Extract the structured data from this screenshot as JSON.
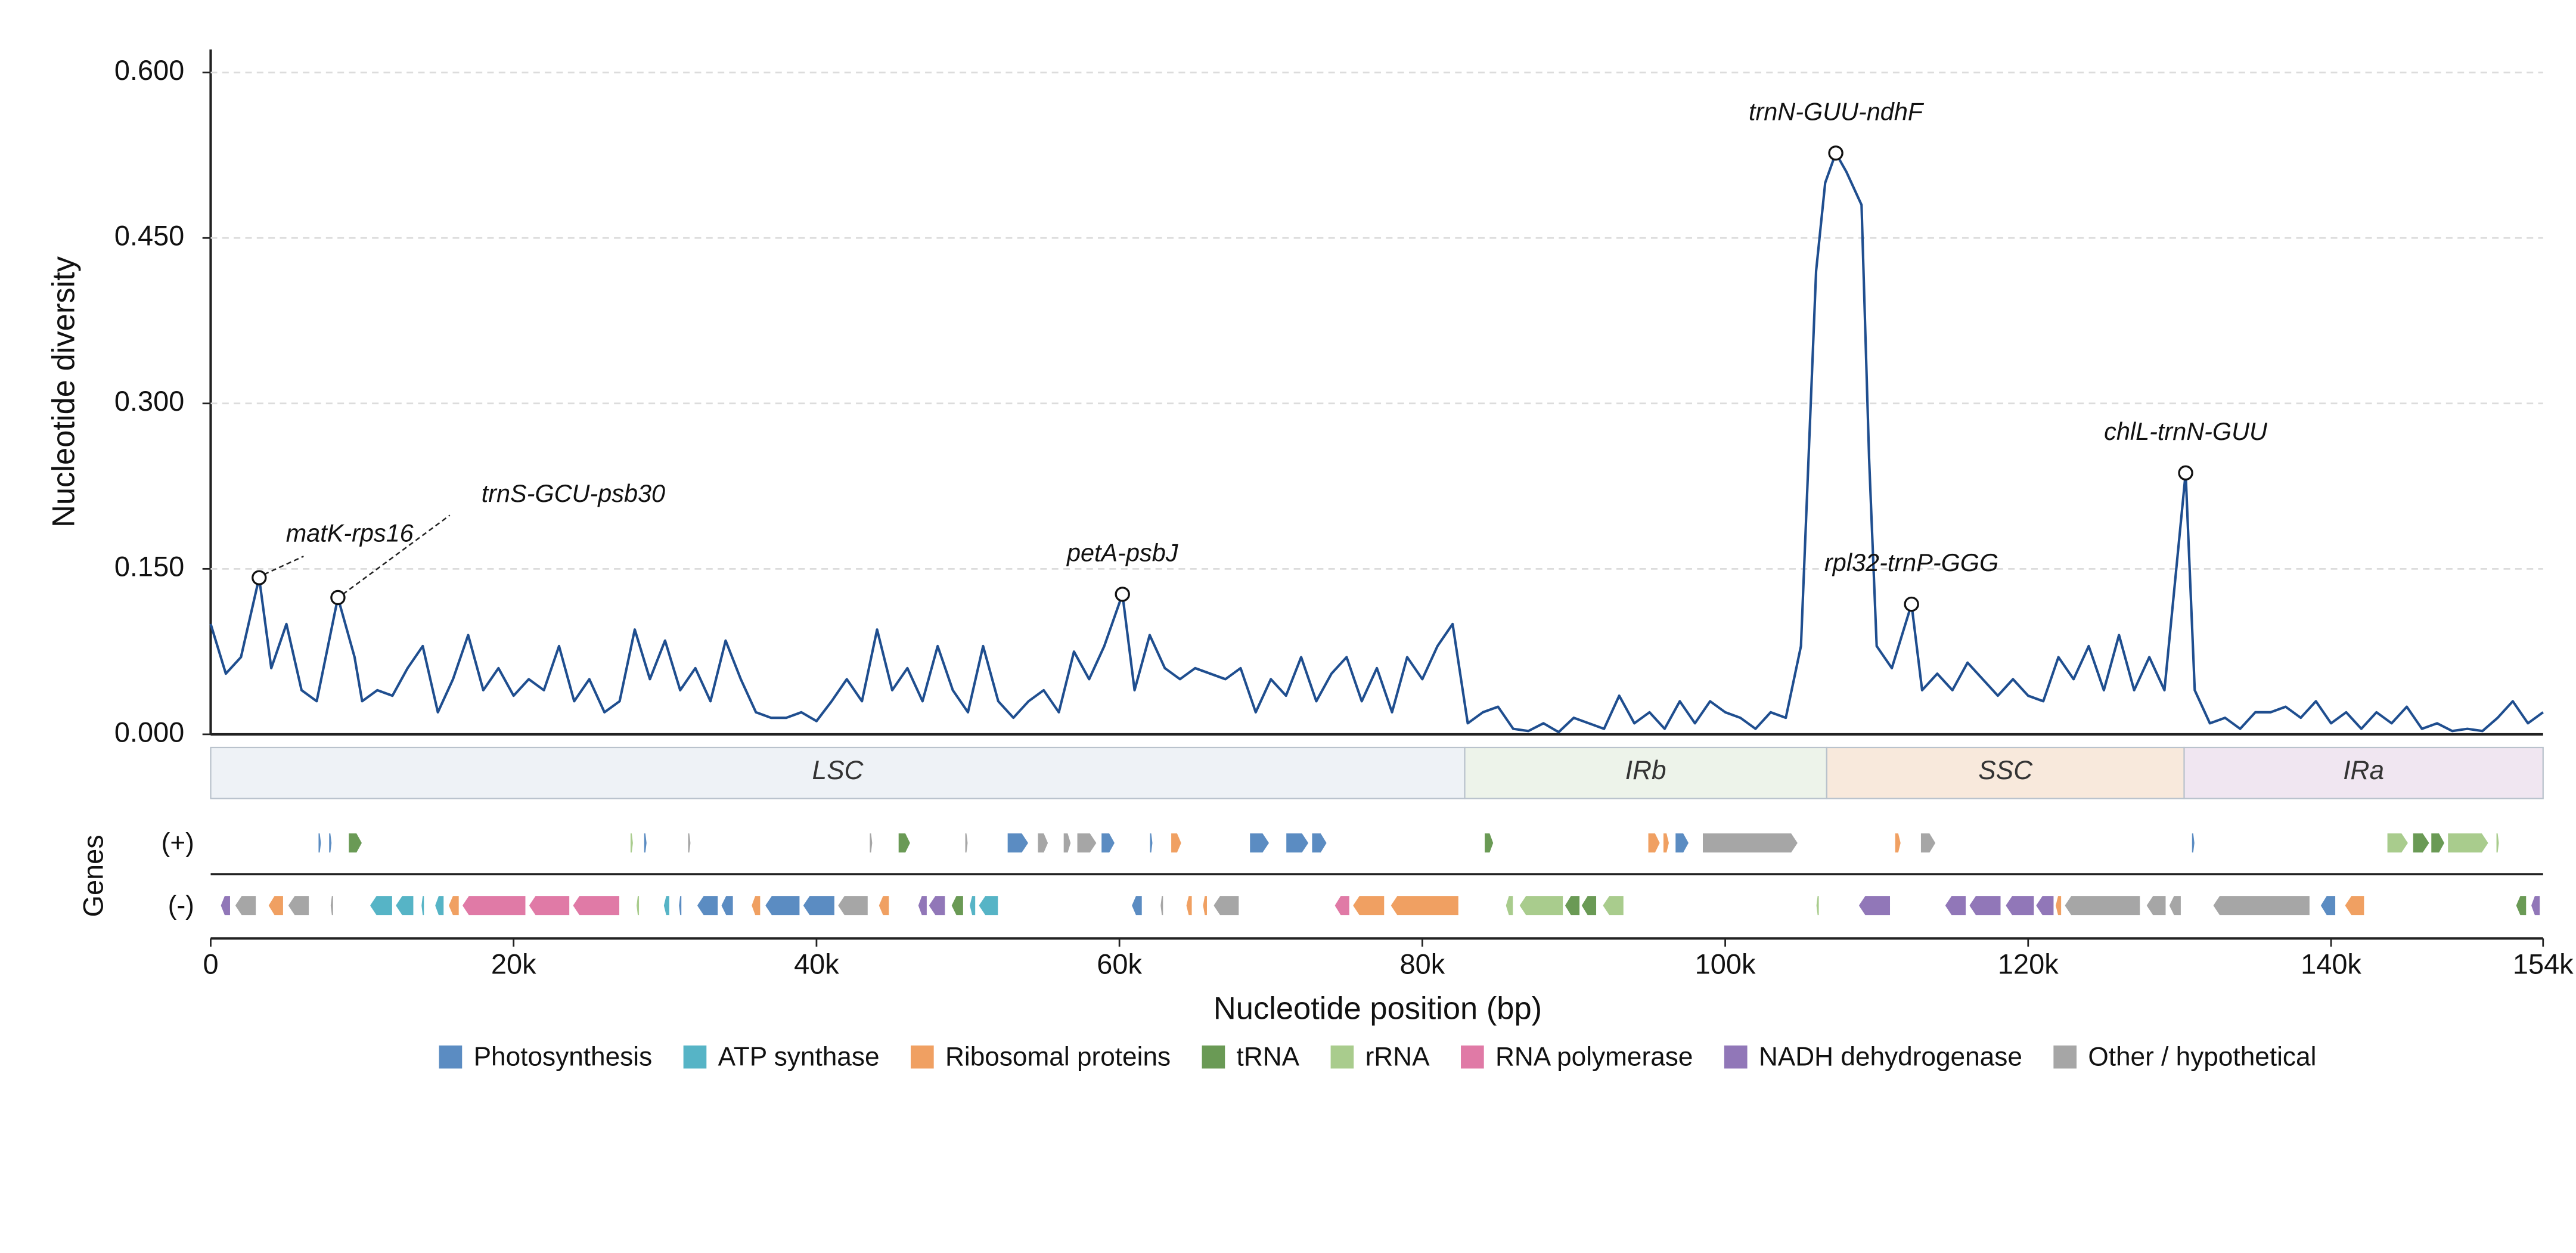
{
  "chart_data": {
    "type": "line",
    "y_label": "Nucleotide diversity",
    "x_label": "Nucleotide position (bp)",
    "genes_label": "Genes",
    "plus_label": "(+)",
    "minus_label": "(-)",
    "xlim": [
      0,
      154000
    ],
    "ylim": [
      0,
      0.6
    ],
    "xticks": [
      0,
      {
        "value": 20000,
        "label": "20k"
      },
      {
        "value": 40000,
        "label": "40k"
      },
      {
        "value": 60000,
        "label": "60k"
      },
      {
        "value": 80000,
        "label": "80k"
      },
      {
        "value": 100000,
        "label": "100k"
      },
      {
        "value": 120000,
        "label": "120k"
      },
      {
        "value": 140000,
        "label": "140k"
      },
      {
        "value": 154000,
        "label": "154k"
      }
    ],
    "yticks": [
      {
        "value": 0,
        "label": "0.000"
      },
      {
        "value": 0.15,
        "label": "0.150"
      },
      {
        "value": 0.3,
        "label": "0.300"
      },
      {
        "value": 0.45,
        "label": "0.450"
      },
      {
        "value": 0.6,
        "label": "0.600"
      }
    ],
    "grid": true,
    "series": [
      {
        "name": "Nucleotide diversity",
        "color": "#1f4e8f",
        "x": [
          0,
          1000,
          2000,
          3200,
          4000,
          5000,
          6000,
          7000,
          8400,
          9500,
          10000,
          11000,
          12000,
          13000,
          14000,
          15000,
          16000,
          17000,
          18000,
          19000,
          20000,
          21000,
          22000,
          23000,
          24000,
          25000,
          26000,
          27000,
          28000,
          29000,
          30000,
          31000,
          32000,
          33000,
          34000,
          35000,
          36000,
          37000,
          38000,
          39000,
          40000,
          41000,
          42000,
          43000,
          44000,
          45000,
          46000,
          47000,
          48000,
          49000,
          50000,
          51000,
          52000,
          53000,
          54000,
          55000,
          56000,
          57000,
          58000,
          59000,
          60200,
          61000,
          62000,
          63000,
          64000,
          65000,
          66000,
          67000,
          68000,
          69000,
          70000,
          71000,
          72000,
          73000,
          74000,
          75000,
          76000,
          77000,
          78000,
          79000,
          80000,
          81000,
          82000,
          83000,
          84000,
          85000,
          86000,
          87000,
          88000,
          89000,
          90000,
          91000,
          92000,
          93000,
          94000,
          95000,
          96000,
          97000,
          98000,
          99000,
          100000,
          101000,
          102000,
          103000,
          104000,
          105000,
          106000,
          106600,
          107300,
          108000,
          109000,
          109500,
          110000,
          111000,
          112300,
          113000,
          114000,
          115000,
          116000,
          117000,
          118000,
          119000,
          120000,
          121000,
          122000,
          123000,
          124000,
          125000,
          126000,
          127000,
          128000,
          129000,
          130400,
          131000,
          132000,
          133000,
          134000,
          135000,
          136000,
          137000,
          138000,
          139000,
          140000,
          141000,
          142000,
          143000,
          144000,
          145000,
          146000,
          147000,
          148000,
          149000,
          150000,
          151000,
          152000,
          153000,
          154000
        ],
        "values": [
          0.1,
          0.055,
          0.07,
          0.142,
          0.06,
          0.1,
          0.04,
          0.03,
          0.124,
          0.07,
          0.03,
          0.04,
          0.035,
          0.06,
          0.08,
          0.02,
          0.05,
          0.09,
          0.04,
          0.06,
          0.035,
          0.05,
          0.04,
          0.08,
          0.03,
          0.05,
          0.02,
          0.03,
          0.095,
          0.05,
          0.085,
          0.04,
          0.06,
          0.03,
          0.085,
          0.05,
          0.02,
          0.015,
          0.015,
          0.02,
          0.012,
          0.03,
          0.05,
          0.03,
          0.095,
          0.04,
          0.06,
          0.03,
          0.08,
          0.04,
          0.02,
          0.08,
          0.03,
          0.015,
          0.03,
          0.04,
          0.02,
          0.075,
          0.05,
          0.08,
          0.127,
          0.04,
          0.09,
          0.06,
          0.05,
          0.06,
          0.055,
          0.05,
          0.06,
          0.02,
          0.05,
          0.035,
          0.07,
          0.03,
          0.055,
          0.07,
          0.03,
          0.06,
          0.02,
          0.07,
          0.05,
          0.08,
          0.1,
          0.01,
          0.02,
          0.025,
          0.005,
          0.003,
          0.01,
          0.002,
          0.015,
          0.01,
          0.005,
          0.035,
          0.01,
          0.02,
          0.005,
          0.03,
          0.01,
          0.03,
          0.02,
          0.015,
          0.005,
          0.02,
          0.015,
          0.08,
          0.42,
          0.5,
          0.527,
          0.51,
          0.48,
          0.25,
          0.08,
          0.06,
          0.118,
          0.04,
          0.055,
          0.04,
          0.065,
          0.05,
          0.035,
          0.05,
          0.035,
          0.03,
          0.07,
          0.05,
          0.08,
          0.04,
          0.09,
          0.04,
          0.07,
          0.04,
          0.237,
          0.04,
          0.01,
          0.015,
          0.005,
          0.02,
          0.02,
          0.025,
          0.015,
          0.03,
          0.01,
          0.02,
          0.005,
          0.02,
          0.01,
          0.025,
          0.005,
          0.01,
          0.003,
          0.005,
          0.003,
          0.015,
          0.03,
          0.01,
          0.02
        ]
      }
    ],
    "annotations": [
      {
        "text": "matK-rps16",
        "x": 3200,
        "y": 0.142
      },
      {
        "text": "trnS-GCU-psb30",
        "x": 8400,
        "y": 0.124
      },
      {
        "text": "petA-psbJ",
        "x": 60200,
        "y": 0.127
      },
      {
        "text": "trnN-GUU-ndhF",
        "x": 107300,
        "y": 0.527
      },
      {
        "text": "rpl32-trnP-GGG",
        "x": 112300,
        "y": 0.118
      },
      {
        "text": "chlL-trnN-GUU",
        "x": 130400,
        "y": 0.237
      }
    ],
    "regions": [
      {
        "name": "LSC",
        "start": 0,
        "end": 82800,
        "color": "#eef2f6"
      },
      {
        "name": "IRb",
        "start": 82800,
        "end": 106700,
        "color": "#edf3ea"
      },
      {
        "name": "SSC",
        "start": 106700,
        "end": 130300,
        "color": "#f8e9dc"
      },
      {
        "name": "IRa",
        "start": 130300,
        "end": 154000,
        "color": "#f0e6f1"
      }
    ],
    "categories": [
      {
        "name": "Photosynthesis",
        "color": "#5b8cc2"
      },
      {
        "name": "ATP synthase",
        "color": "#56b4c6"
      },
      {
        "name": "Ribosomal proteins",
        "color": "#f0a062"
      },
      {
        "name": "tRNA",
        "color": "#6a9a55"
      },
      {
        "name": "rRNA",
        "color": "#a9cc8d"
      },
      {
        "name": "RNA polymerase",
        "color": "#e07aa6"
      },
      {
        "name": "NADH dehydrogenase",
        "color": "#9177b8"
      },
      {
        "name": "Other / hypothetical",
        "color": "#a6a6a6"
      }
    ],
    "genes_plus": [
      {
        "start": 7100,
        "end": 7300,
        "category": "Photosynthesis"
      },
      {
        "start": 7800,
        "end": 8000,
        "category": "Photosynthesis"
      },
      {
        "start": 9100,
        "end": 10000,
        "category": "tRNA"
      },
      {
        "start": 27700,
        "end": 27900,
        "category": "rRNA"
      },
      {
        "start": 28600,
        "end": 28800,
        "category": "Photosynthesis"
      },
      {
        "start": 31500,
        "end": 31700,
        "category": "Other / hypothetical"
      },
      {
        "start": 43500,
        "end": 43700,
        "category": "Other / hypothetical"
      },
      {
        "start": 45400,
        "end": 46200,
        "category": "tRNA"
      },
      {
        "start": 49800,
        "end": 50000,
        "category": "Other / hypothetical"
      },
      {
        "start": 52600,
        "end": 54000,
        "category": "Photosynthesis"
      },
      {
        "start": 54600,
        "end": 55300,
        "category": "Other / hypothetical"
      },
      {
        "start": 56300,
        "end": 56800,
        "category": "Other / hypothetical"
      },
      {
        "start": 57200,
        "end": 58500,
        "category": "Other / hypothetical"
      },
      {
        "start": 58800,
        "end": 59700,
        "category": "Photosynthesis"
      },
      {
        "start": 62000,
        "end": 62200,
        "category": "Photosynthesis"
      },
      {
        "start": 63400,
        "end": 64100,
        "category": "Ribosomal proteins"
      },
      {
        "start": 68600,
        "end": 69900,
        "category": "Photosynthesis"
      },
      {
        "start": 71000,
        "end": 72500,
        "category": "Photosynthesis"
      },
      {
        "start": 72700,
        "end": 73700,
        "category": "Photosynthesis"
      },
      {
        "start": 84100,
        "end": 84700,
        "category": "tRNA"
      },
      {
        "start": 94900,
        "end": 95700,
        "category": "Ribosomal proteins"
      },
      {
        "start": 95900,
        "end": 96300,
        "category": "Ribosomal proteins"
      },
      {
        "start": 96700,
        "end": 97600,
        "category": "Photosynthesis"
      },
      {
        "start": 98500,
        "end": 104800,
        "category": "Other / hypothetical"
      },
      {
        "start": 111200,
        "end": 111600,
        "category": "Ribosomal proteins"
      },
      {
        "start": 112900,
        "end": 113900,
        "category": "Other / hypothetical"
      },
      {
        "start": 130800,
        "end": 131000,
        "category": "Photosynthesis"
      },
      {
        "start": 143700,
        "end": 145100,
        "category": "rRNA"
      },
      {
        "start": 145400,
        "end": 146500,
        "category": "tRNA"
      },
      {
        "start": 146600,
        "end": 147500,
        "category": "tRNA"
      },
      {
        "start": 147700,
        "end": 150400,
        "category": "rRNA"
      },
      {
        "start": 150900,
        "end": 151100,
        "category": "rRNA"
      }
    ],
    "genes_minus": [
      {
        "start": 650,
        "end": 1300,
        "category": "NADH dehydrogenase"
      },
      {
        "start": 1600,
        "end": 3000,
        "category": "Other / hypothetical"
      },
      {
        "start": 3800,
        "end": 4800,
        "category": "Ribosomal proteins"
      },
      {
        "start": 5100,
        "end": 6500,
        "category": "Other / hypothetical"
      },
      {
        "start": 7900,
        "end": 8100,
        "category": "Other / hypothetical"
      },
      {
        "start": 10500,
        "end": 12000,
        "category": "ATP synthase"
      },
      {
        "start": 12200,
        "end": 13400,
        "category": "ATP synthase"
      },
      {
        "start": 13900,
        "end": 14100,
        "category": "ATP synthase"
      },
      {
        "start": 14800,
        "end": 15400,
        "category": "ATP synthase"
      },
      {
        "start": 15700,
        "end": 16400,
        "category": "Ribosomal proteins"
      },
      {
        "start": 16600,
        "end": 20800,
        "category": "RNA polymerase"
      },
      {
        "start": 21000,
        "end": 23700,
        "category": "RNA polymerase"
      },
      {
        "start": 23900,
        "end": 27000,
        "category": "RNA polymerase"
      },
      {
        "start": 28100,
        "end": 28300,
        "category": "rRNA"
      },
      {
        "start": 29900,
        "end": 30300,
        "category": "ATP synthase"
      },
      {
        "start": 30900,
        "end": 31100,
        "category": "Photosynthesis"
      },
      {
        "start": 32100,
        "end": 33500,
        "category": "Photosynthesis"
      },
      {
        "start": 33700,
        "end": 34500,
        "category": "Photosynthesis"
      },
      {
        "start": 35700,
        "end": 36300,
        "category": "Ribosomal proteins"
      },
      {
        "start": 36600,
        "end": 38900,
        "category": "Photosynthesis"
      },
      {
        "start": 39100,
        "end": 41200,
        "category": "Photosynthesis"
      },
      {
        "start": 41400,
        "end": 43400,
        "category": "Other / hypothetical"
      },
      {
        "start": 44100,
        "end": 44800,
        "category": "Ribosomal proteins"
      },
      {
        "start": 46700,
        "end": 47300,
        "category": "NADH dehydrogenase"
      },
      {
        "start": 47400,
        "end": 48500,
        "category": "NADH dehydrogenase"
      },
      {
        "start": 48900,
        "end": 49700,
        "category": "tRNA"
      },
      {
        "start": 50100,
        "end": 50500,
        "category": "ATP synthase"
      },
      {
        "start": 50700,
        "end": 52000,
        "category": "ATP synthase"
      },
      {
        "start": 60800,
        "end": 61500,
        "category": "Photosynthesis"
      },
      {
        "start": 62700,
        "end": 62900,
        "category": "Other / hypothetical"
      },
      {
        "start": 64400,
        "end": 64800,
        "category": "Ribosomal proteins"
      },
      {
        "start": 65500,
        "end": 65800,
        "category": "Ribosomal proteins"
      },
      {
        "start": 66200,
        "end": 67900,
        "category": "Other / hypothetical"
      },
      {
        "start": 74200,
        "end": 75200,
        "category": "RNA polymerase"
      },
      {
        "start": 75400,
        "end": 77500,
        "category": "Ribosomal proteins"
      },
      {
        "start": 77900,
        "end": 82400,
        "category": "Ribosomal proteins"
      },
      {
        "start": 85500,
        "end": 86000,
        "category": "rRNA"
      },
      {
        "start": 86400,
        "end": 89300,
        "category": "rRNA"
      },
      {
        "start": 89400,
        "end": 90400,
        "category": "tRNA"
      },
      {
        "start": 90500,
        "end": 91500,
        "category": "tRNA"
      },
      {
        "start": 91900,
        "end": 93300,
        "category": "rRNA"
      },
      {
        "start": 106000,
        "end": 106200,
        "category": "rRNA"
      },
      {
        "start": 108800,
        "end": 110900,
        "category": "NADH dehydrogenase"
      },
      {
        "start": 114500,
        "end": 115900,
        "category": "NADH dehydrogenase"
      },
      {
        "start": 116100,
        "end": 118200,
        "category": "NADH dehydrogenase"
      },
      {
        "start": 118500,
        "end": 120400,
        "category": "NADH dehydrogenase"
      },
      {
        "start": 120500,
        "end": 121700,
        "category": "NADH dehydrogenase"
      },
      {
        "start": 121800,
        "end": 122200,
        "category": "Ribosomal proteins"
      },
      {
        "start": 122400,
        "end": 127400,
        "category": "Other / hypothetical"
      },
      {
        "start": 127800,
        "end": 129100,
        "category": "Other / hypothetical"
      },
      {
        "start": 129300,
        "end": 130100,
        "category": "Other / hypothetical"
      },
      {
        "start": 132200,
        "end": 138600,
        "category": "Other / hypothetical"
      },
      {
        "start": 139300,
        "end": 140300,
        "category": "Photosynthesis"
      },
      {
        "start": 140900,
        "end": 142200,
        "category": "Ribosomal proteins"
      },
      {
        "start": 152200,
        "end": 152900,
        "category": "tRNA"
      },
      {
        "start": 153200,
        "end": 153800,
        "category": "NADH dehydrogenase"
      }
    ]
  }
}
